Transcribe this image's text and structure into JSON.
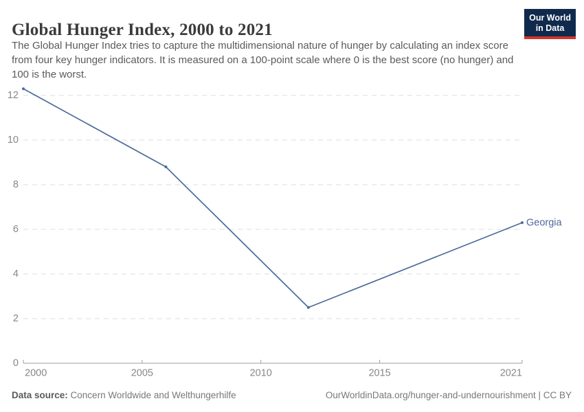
{
  "header": {
    "title": "Global Hunger Index, 2000 to 2021",
    "subtitle_lines": [
      "The Global Hunger Index tries to capture the multidimensional nature of hunger by calculating an index score",
      "from four key hunger indicators. It is measured on a 100-point scale where 0 is the best score (no hunger) and",
      "100 is the worst."
    ]
  },
  "logo": {
    "line1": "Our World",
    "line2": "in Data",
    "bg_color": "#102a4d",
    "bar_color": "#d2352c"
  },
  "chart_data": {
    "type": "line",
    "title": "Global Hunger Index, 2000 to 2021",
    "xlabel": "",
    "ylabel": "",
    "xlim": [
      2000,
      2021
    ],
    "ylim": [
      0,
      12.9
    ],
    "xticks": [
      2000,
      2005,
      2010,
      2015,
      2021
    ],
    "yticks": [
      0,
      2,
      4,
      6,
      8,
      10,
      12
    ],
    "grid": "horizontal-dashed",
    "legend_position": "end-of-line-label",
    "series": [
      {
        "name": "Georgia",
        "x": [
          2000,
          2006,
          2012,
          2021
        ],
        "values": [
          12.3,
          8.8,
          2.5,
          6.3
        ],
        "color": "#4c6a9c"
      }
    ]
  },
  "footer": {
    "datasource_label": "Data source:",
    "datasource_value": "Concern Worldwide and Welthungerhilfe",
    "credit": "OurWorldinData.org/hunger-and-undernourishment | CC BY"
  },
  "colors": {
    "line": "#4c6a9c",
    "title_text": "#3b3b3b",
    "subtitle_text": "#5a5a5a",
    "axis_text": "#878787",
    "gridline": "#dcdcdc",
    "axis_line": "#9c9c9c",
    "footer_label_text": "#5a5a5a",
    "footer_text": "#787878"
  }
}
